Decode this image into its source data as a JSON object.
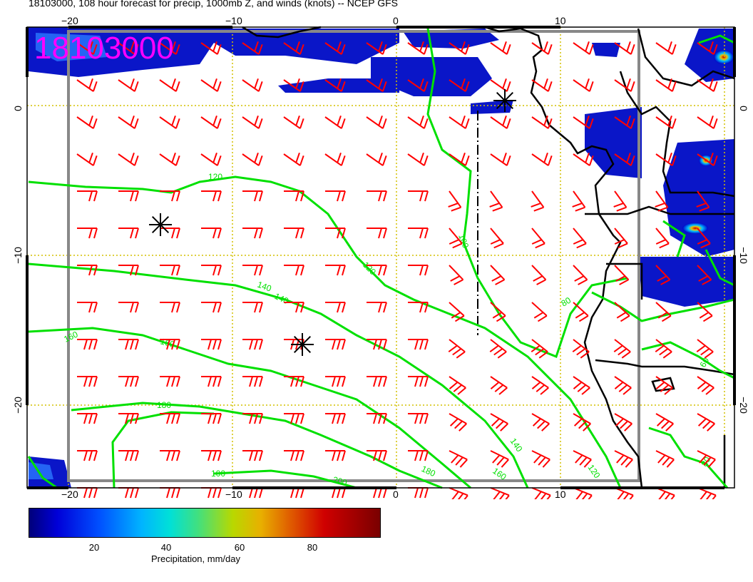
{
  "title": "18103000, 108 hour forecast for precip, 1000mb Z, and winds (knots) -- NCEP GFS",
  "map_stamp": "18103000",
  "axes": {
    "x_ticks": [
      "−20",
      "−10",
      "0",
      "10"
    ],
    "y_ticks": [
      "0",
      "−10",
      "−20"
    ]
  },
  "colors": {
    "wind_barbs": "#ff0000",
    "contours": "#00dd00",
    "stamp": "#ff00ff",
    "gridlines": "#d4c000"
  },
  "contour_labels": [
    "120",
    "100",
    "120",
    "140",
    "140",
    "160",
    "160",
    "80",
    "180",
    "200",
    "180",
    "160",
    "140",
    "120",
    "80",
    "60",
    "100"
  ],
  "pressure_centers": [
    "high-center-marker",
    "high-center-marker",
    "high-center-marker"
  ],
  "colorbar": {
    "ticks": [
      "20",
      "40",
      "60",
      "80"
    ],
    "label": "Precipitation, mm/day"
  }
}
